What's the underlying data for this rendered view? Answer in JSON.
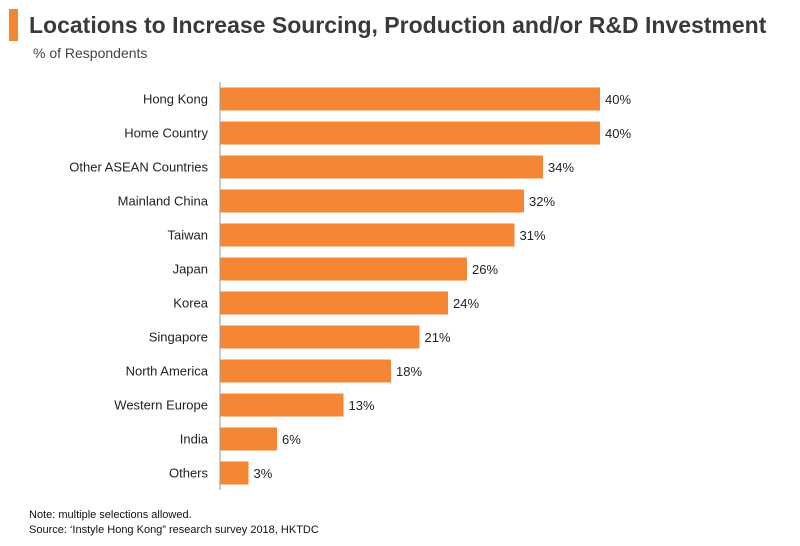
{
  "header": {
    "title": "Locations to Increase Sourcing, Production and/or R&D Investment",
    "subtitle": "% of Respondents",
    "accent_color": "#f58634"
  },
  "chart_data": {
    "type": "bar",
    "orientation": "horizontal",
    "categories": [
      "Hong Kong",
      "Home Country",
      "Other ASEAN Countries",
      "Mainland China",
      "Taiwan",
      "Japan",
      "Korea",
      "Singapore",
      "North America",
      "Western Europe",
      "India",
      "Others"
    ],
    "values": [
      40,
      40,
      34,
      32,
      31,
      26,
      24,
      21,
      18,
      13,
      6,
      3
    ],
    "value_labels": [
      "40%",
      "40%",
      "34%",
      "32%",
      "31%",
      "26%",
      "24%",
      "21%",
      "18%",
      "13%",
      "6%",
      "3%"
    ],
    "unit": "%",
    "title": "Locations to Increase Sourcing, Production and/or R&D Investment",
    "ylabel": "% of Respondents",
    "xlim": [
      0,
      40
    ],
    "grid": false,
    "legend": "none",
    "bar_color": "#f58634"
  },
  "footer": {
    "note": "Note: multiple selections allowed.",
    "source": "Source: ‘Instyle Hong Kong” research survey 2018, HKTDC"
  }
}
